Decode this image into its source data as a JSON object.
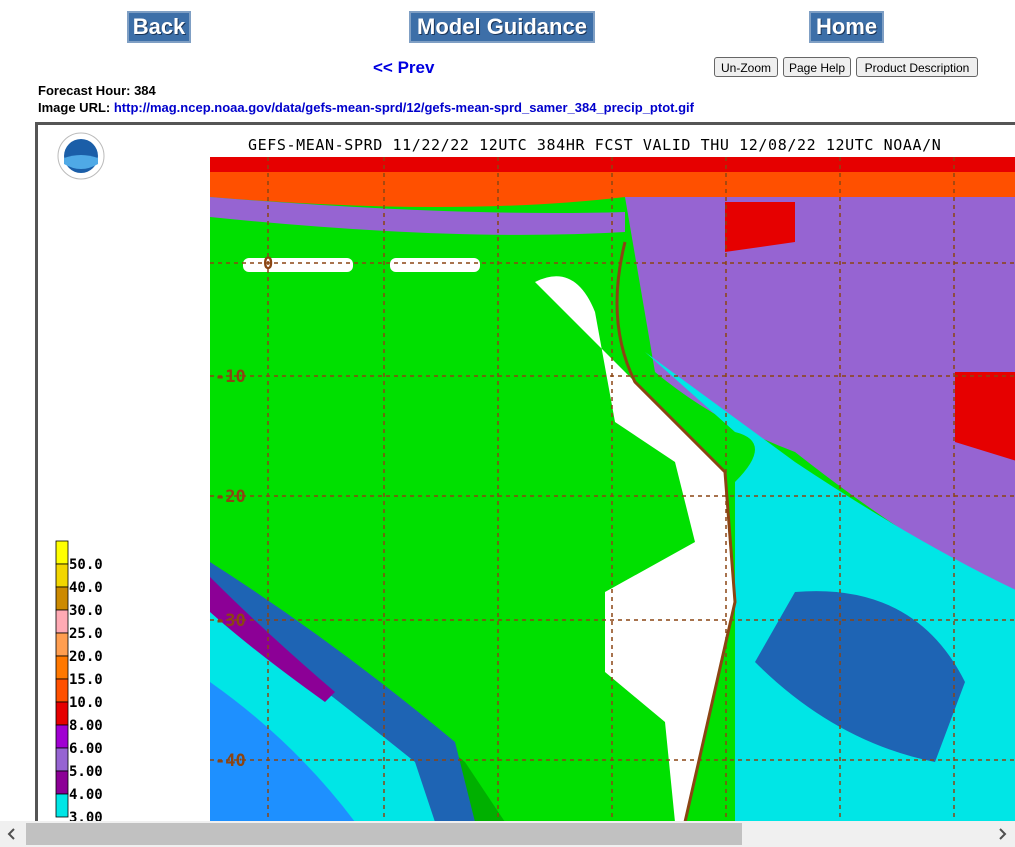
{
  "nav": {
    "back": "Back",
    "model_guidance": "Model Guidance",
    "home": "Home"
  },
  "prev": "<< Prev",
  "tools": [
    "Un-Zoom",
    "Page Help",
    "Product Description"
  ],
  "info": {
    "forecast_hour": "Forecast Hour: 384",
    "image_url_label": "Image URL:",
    "image_url": "http://mag.ncep.noaa.gov/data/gefs-mean-sprd/12/gefs-mean-sprd_samer_384_precip_ptot.gif"
  },
  "map": {
    "title": "GEFS-MEAN-SPRD 11/22/22 12UTC 384HR FCST VALID THU 12/08/22 12UTC NOAA/N",
    "lat_labels": [
      "0",
      "-10",
      "-20",
      "-30",
      "-40"
    ],
    "legend": [
      {
        "label": "50.0",
        "color": "#ffff00"
      },
      {
        "label": "40.0",
        "color": "#f2d600"
      },
      {
        "label": "30.0",
        "color": "#cc8a00"
      },
      {
        "label": "25.0",
        "color": "#ffaab4"
      },
      {
        "label": "20.0",
        "color": "#ff9e50"
      },
      {
        "label": "15.0",
        "color": "#ff7800"
      },
      {
        "label": "10.0",
        "color": "#ff5000"
      },
      {
        "label": "8.00",
        "color": "#e60000"
      },
      {
        "label": "6.00",
        "color": "#a000d2"
      },
      {
        "label": "5.00",
        "color": "#9664d2"
      },
      {
        "label": "4.00",
        "color": "#8c0096"
      },
      {
        "label": "3.00",
        "color": "#00e6e6"
      }
    ]
  }
}
